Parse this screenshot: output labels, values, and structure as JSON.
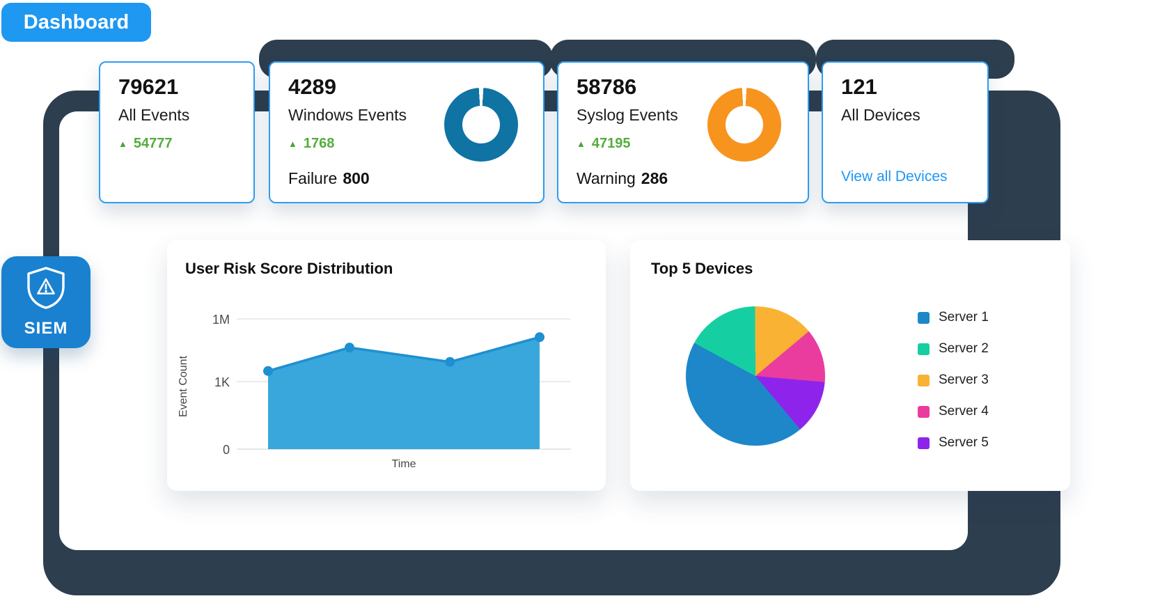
{
  "page": {
    "dashboard_badge": "Dashboard",
    "siem_badge": "SIEM"
  },
  "icons": {
    "up_triangle": "▲"
  },
  "colors": {
    "accent_blue": "#1e98f0",
    "card_border_blue": "#2e9df0",
    "dark_frame": "#2d3e4f",
    "delta_green": "#53ad3c",
    "link_blue": "#2196f3"
  },
  "stat_cards": [
    {
      "value": "79621",
      "label": "All Events",
      "delta": "54777"
    },
    {
      "value": "4289",
      "label": "Windows Events",
      "delta": "1768",
      "secondary_label": "Failure",
      "secondary_value": "800"
    },
    {
      "value": "58786",
      "label": "Syslog Events",
      "delta": "47195",
      "secondary_label": "Warning",
      "secondary_value": "286"
    },
    {
      "value": "121",
      "label": "All Devices",
      "link_label": "View all Devices"
    }
  ],
  "chart_data": [
    {
      "type": "area",
      "title": "User Risk Score Distribution",
      "xlabel": "Time",
      "ylabel": "Event Count",
      "yticks": [
        "1M",
        "1K",
        "0"
      ],
      "fill_color": "#39a7db",
      "line_color": "#1e8fd2",
      "points_note": "x is fraction of Time axis; y is fraction of plot height between the 0 baseline and the 1M gridline",
      "points": [
        {
          "x": 0.0,
          "y": 0.6
        },
        {
          "x": 0.3,
          "y": 0.78
        },
        {
          "x": 0.67,
          "y": 0.67
        },
        {
          "x": 1.0,
          "y": 0.86
        }
      ]
    },
    {
      "type": "pie",
      "title": "Top 5 Devices",
      "legend_position": "right",
      "start_angle_deg": 140,
      "series": [
        {
          "name": "Server 1",
          "value": 44,
          "color": "#1d87c9"
        },
        {
          "name": "Server 2",
          "value": 17,
          "color": "#15cfa2"
        },
        {
          "name": "Server 3",
          "value": 14,
          "color": "#f9b233"
        },
        {
          "name": "Server 4",
          "value": 12.5,
          "color": "#ea3c9e"
        },
        {
          "name": "Server 5",
          "value": 12.5,
          "color": "#8e24ec"
        }
      ]
    },
    {
      "type": "donut",
      "name": "windows-events-ring",
      "percent": 98,
      "color": "#0f73a4",
      "gap_position": "top"
    },
    {
      "type": "donut",
      "name": "syslog-events-ring",
      "percent": 98,
      "color": "#f7941e",
      "gap_position": "top"
    }
  ]
}
